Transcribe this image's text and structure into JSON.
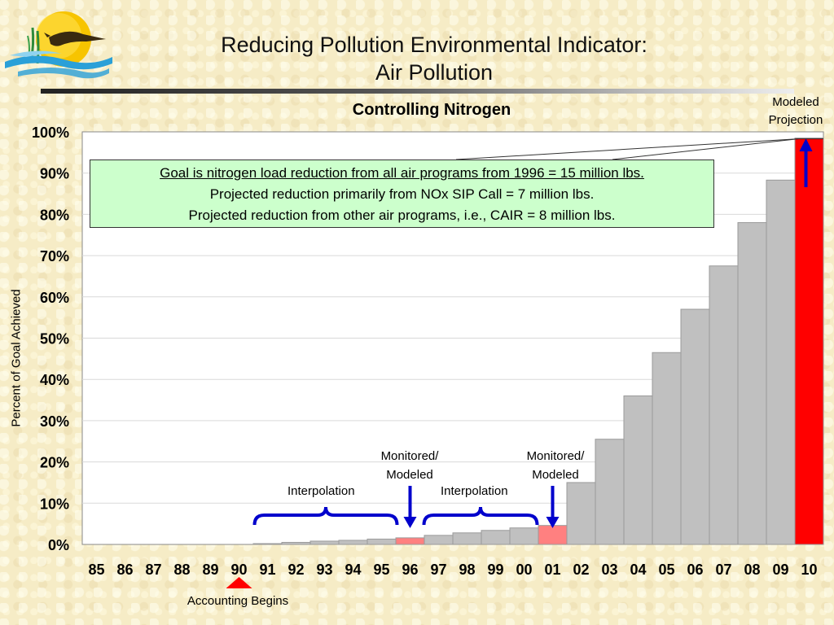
{
  "slide": {
    "title_line1": "Reducing Pollution Environmental Indicator:",
    "title_line2": "Air Pollution"
  },
  "chart_data": {
    "type": "bar",
    "title": "Controlling Nitrogen",
    "xlabel": "",
    "ylabel": "Percent of Goal Achieved",
    "ylim": [
      0,
      100
    ],
    "y_ticks": [
      "0%",
      "10%",
      "20%",
      "30%",
      "40%",
      "50%",
      "60%",
      "70%",
      "80%",
      "90%",
      "100%"
    ],
    "categories": [
      "85",
      "86",
      "87",
      "88",
      "89",
      "90",
      "91",
      "92",
      "93",
      "94",
      "95",
      "96",
      "97",
      "98",
      "99",
      "00",
      "01",
      "02",
      "03",
      "04",
      "05",
      "06",
      "07",
      "08",
      "09",
      "10"
    ],
    "values": [
      0,
      0,
      0,
      0,
      0,
      0,
      0.2,
      0.5,
      0.8,
      1.0,
      1.3,
      1.6,
      2.2,
      2.8,
      3.4,
      4.0,
      4.6,
      15.0,
      25.5,
      36.0,
      46.5,
      57.0,
      67.5,
      78.0,
      88.3,
      98.5
    ],
    "bar_kind": [
      "none",
      "none",
      "none",
      "none",
      "none",
      "none",
      "interpolated",
      "interpolated",
      "interpolated",
      "interpolated",
      "interpolated",
      "monitored",
      "interpolated",
      "interpolated",
      "interpolated",
      "interpolated",
      "monitored",
      "projected",
      "projected",
      "projected",
      "projected",
      "projected",
      "projected",
      "projected",
      "projected",
      "goal"
    ],
    "colors": {
      "interpolated": "#c0c0c0",
      "monitored": "#ff8080",
      "projected": "#c0c0c0",
      "goal": "#ff0000",
      "arrow": "#0000cc",
      "marker": "#ff0000",
      "grid": "#d9d9d9"
    },
    "grid": true,
    "annotations": {
      "modeled_line1": "Modeled",
      "modeled_line2": "Projection",
      "interp_label": "Interpolation",
      "monitored_line1": "Monitored/",
      "monitored_line2": "Modeled",
      "accounting": "Accounting Begins"
    },
    "callout": {
      "line1": "Goal is nitrogen load reduction from all air programs from 1996 = 15 million lbs.",
      "line2": "Projected reduction primarily from NOx SIP Call = 7 million lbs.",
      "line3": "Projected reduction from other air programs, i.e., CAIR = 8 million lbs."
    }
  }
}
